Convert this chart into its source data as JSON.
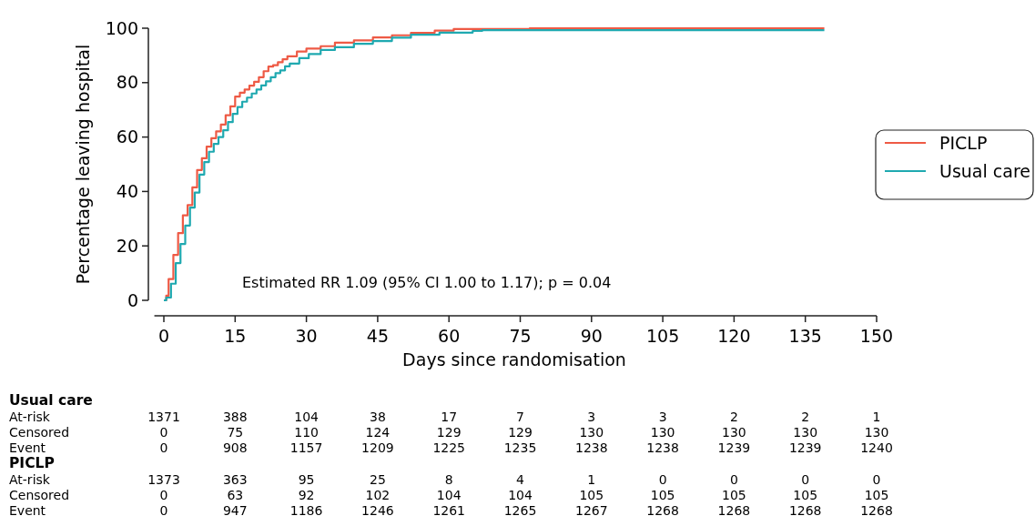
{
  "chart_data": {
    "type": "step",
    "xlabel": "Days since randomisation",
    "ylabel": "Percentage leaving hospital",
    "xlim": [
      -2,
      150
    ],
    "ylim": [
      0,
      100
    ],
    "xticks": [
      0,
      15,
      30,
      45,
      60,
      75,
      90,
      105,
      120,
      135,
      150
    ],
    "yticks": [
      0,
      20,
      40,
      60,
      80,
      100
    ],
    "legend": "right",
    "grid": false,
    "series": [
      {
        "name": "PICLP",
        "color": "#ee5a45",
        "x": [
          0,
          0.5,
          1,
          2,
          3,
          4,
          5,
          6,
          7,
          8,
          9,
          10,
          11,
          12,
          13,
          14,
          15,
          16,
          17,
          18,
          19,
          20,
          21,
          22,
          23,
          24,
          25,
          26,
          28,
          30,
          33,
          36,
          40,
          44,
          48,
          52,
          57,
          61,
          77,
          139
        ],
        "values": [
          0,
          1.7,
          7.8,
          16.7,
          24.7,
          31.2,
          35,
          41.5,
          47.9,
          52.2,
          56.5,
          59.6,
          62.1,
          64.6,
          68,
          71.3,
          74.9,
          76.3,
          77.5,
          78.9,
          80.3,
          82,
          84.2,
          85.9,
          86.4,
          87.5,
          88.6,
          89.7,
          91.4,
          92.5,
          93.4,
          94.7,
          95.5,
          96.6,
          97.4,
          98.3,
          99.1,
          99.7,
          100,
          100
        ]
      },
      {
        "name": "Usual care",
        "color": "#1fa9b0",
        "x": [
          0,
          0.5,
          1.5,
          2.5,
          3.5,
          4.5,
          5.5,
          6.5,
          7.5,
          8.5,
          9.5,
          10.5,
          11.5,
          12.5,
          13.5,
          14.5,
          15.5,
          16.5,
          17.5,
          18.5,
          19.5,
          20.5,
          21.5,
          22.5,
          23.5,
          24.5,
          25.5,
          26.5,
          28.5,
          30.5,
          33,
          36,
          40,
          44,
          48,
          52,
          58,
          65,
          67,
          139
        ],
        "values": [
          0,
          1,
          6.1,
          13.7,
          20.7,
          27.5,
          34.1,
          39.6,
          46.2,
          50.8,
          54.6,
          57.5,
          60,
          62.5,
          65.5,
          68.5,
          71,
          73,
          74.5,
          76,
          77.5,
          79,
          80.5,
          82,
          83.5,
          84.5,
          86,
          87,
          89,
          90.5,
          92,
          93,
          94.3,
          95.3,
          96.5,
          97.6,
          98.4,
          99,
          99.3,
          99.3
        ]
      }
    ],
    "annotations": [
      "Estimated RR 1.09 (95% CI 1.00 to 1.17); $_{}$p = 0.04",
      "Usual care",
      "At-risk",
      "1371",
      "388",
      "104",
      "38",
      "17",
      "7",
      "3",
      "3",
      "2",
      "2",
      "1",
      "Censored",
      "0",
      "75",
      "110",
      "124",
      "129",
      "129",
      "130",
      "130",
      "130",
      "130",
      "130",
      "Event",
      "0",
      "908",
      "1157",
      "1209",
      "1225",
      "1235",
      "1238",
      "1238",
      "1239",
      "1239",
      "1240",
      "PICLP",
      "At-risk",
      "1373",
      "363",
      "95",
      "25",
      "8",
      "4",
      "1",
      "0",
      "0",
      "0",
      "0",
      "Censored",
      "0",
      "63",
      "92",
      "102",
      "104",
      "104",
      "105",
      "105",
      "105",
      "105",
      "105",
      "Event",
      "0",
      "947",
      "1186",
      "1246",
      "1261",
      "1265",
      "1267",
      "1268",
      "1268",
      "1268",
      "1268"
    ]
  }
}
